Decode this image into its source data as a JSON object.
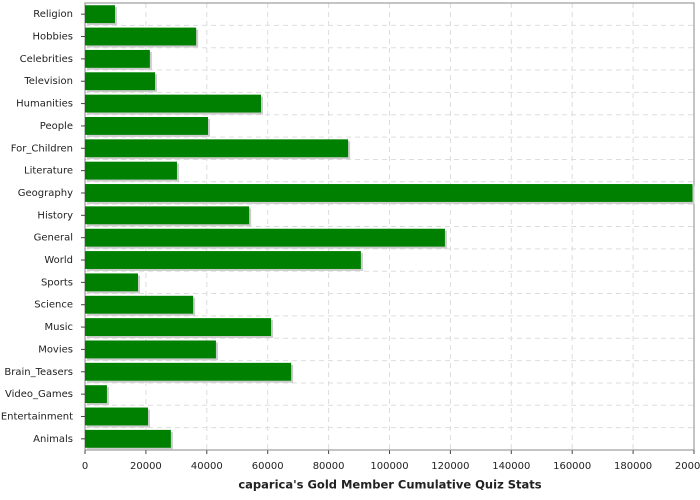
{
  "chart_data": {
    "type": "hbar",
    "title": "caparica's Gold Member Cumulative Quiz Stats",
    "categories": [
      "Religion",
      "Hobbies",
      "Celebrities",
      "Television",
      "Humanities",
      "People",
      "For_Children",
      "Literature",
      "Geography",
      "History",
      "General",
      "World",
      "Sports",
      "Science",
      "Music",
      "Movies",
      "Brain_Teasers",
      "Video_Games",
      "Entertainment",
      "Animals"
    ],
    "values": [
      9850,
      36500,
      21300,
      23000,
      57800,
      40400,
      86400,
      30200,
      199500,
      53900,
      118200,
      90600,
      17400,
      35500,
      61100,
      43000,
      67700,
      7200,
      20700,
      28200
    ],
    "color": "#008000",
    "xlim": [
      0,
      200000
    ],
    "xticks": [
      0,
      20000,
      40000,
      60000,
      80000,
      100000,
      120000,
      140000,
      160000,
      180000,
      200000
    ],
    "grid": true
  }
}
